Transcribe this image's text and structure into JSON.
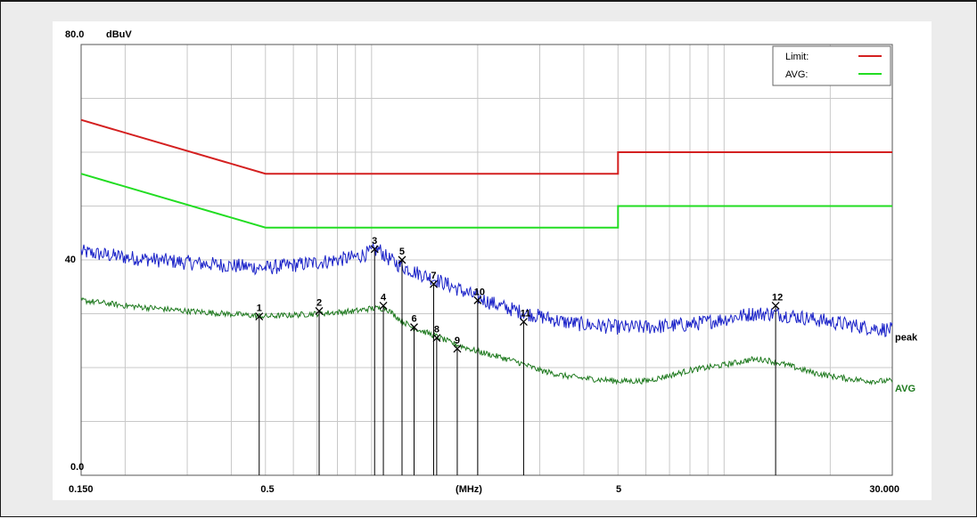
{
  "chart_data": {
    "type": "line",
    "title": "",
    "ylabel_unit": "dBuV",
    "xunit_label": "(MHz)",
    "xscale": "log",
    "xlim": [
      0.15,
      30
    ],
    "ylim": [
      0,
      80
    ],
    "grid": true,
    "y_ticks": [
      {
        "value": 80,
        "label": "80.0"
      },
      {
        "value": 40,
        "label": "40"
      },
      {
        "value": 0,
        "label": "0.0"
      }
    ],
    "x_ticks": [
      {
        "value": 0.15,
        "label": "0.150"
      },
      {
        "value": 0.5,
        "label": "0.5"
      },
      {
        "value": 5,
        "label": "5"
      },
      {
        "value": 30,
        "label": "30.000"
      }
    ],
    "legend": {
      "placement": "top-right",
      "entries": [
        {
          "label": "Limit:",
          "color": "#d42020"
        },
        {
          "label": "AVG:",
          "color": "#22dd22"
        }
      ]
    },
    "series": [
      {
        "name": "Limit:",
        "color": "#d42020",
        "x": [
          0.15,
          0.5,
          5,
          5,
          30
        ],
        "y": [
          66,
          56,
          56,
          60,
          60
        ]
      },
      {
        "name": "AVG:",
        "color": "#22dd22",
        "x": [
          0.15,
          0.5,
          5,
          5,
          30
        ],
        "y": [
          56,
          46,
          46,
          50,
          50
        ]
      },
      {
        "name": "peak",
        "color": "#1a22c8",
        "end_label": "peak",
        "x": [
          0.15,
          0.2,
          0.3,
          0.5,
          0.7,
          0.9,
          1.0,
          1.05,
          1.1,
          1.2,
          1.3,
          1.5,
          1.7,
          2.0,
          2.3,
          2.6,
          3.0,
          3.5,
          4.0,
          5.0,
          6.0,
          8.0,
          10.0,
          12.0,
          14.0,
          16.0,
          20.0,
          25.0,
          30.0
        ],
        "y": [
          41.5,
          40.5,
          39.5,
          38.5,
          39.5,
          40.5,
          41.5,
          42.0,
          40.5,
          39.0,
          38.0,
          36.5,
          35.0,
          33.0,
          31.5,
          30.5,
          29.5,
          28.5,
          28.0,
          27.5,
          27.5,
          28.0,
          29.0,
          30.0,
          30.0,
          29.5,
          28.5,
          27.5,
          27.0
        ]
      },
      {
        "name": "AVG",
        "color": "#1f7a1f",
        "end_label": "AVG",
        "x": [
          0.15,
          0.2,
          0.3,
          0.5,
          0.7,
          0.9,
          1.0,
          1.1,
          1.2,
          1.3,
          1.5,
          1.7,
          2.0,
          2.3,
          2.6,
          3.0,
          3.5,
          4.0,
          5.0,
          6.0,
          7.0,
          8.0,
          10.0,
          12.0,
          13.0,
          15.0,
          18.0,
          22.0,
          26.0,
          30.0
        ],
        "y": [
          32.5,
          31.5,
          30.5,
          29.5,
          30.0,
          30.5,
          31.0,
          31.0,
          29.0,
          27.5,
          26.0,
          24.5,
          23.0,
          22.0,
          21.0,
          19.5,
          18.5,
          18.0,
          17.5,
          17.5,
          18.5,
          19.5,
          20.5,
          21.5,
          21.5,
          20.5,
          19.0,
          18.0,
          17.5,
          17.5
        ]
      }
    ],
    "markers": [
      {
        "label": "1",
        "x": 0.48,
        "y": 29.5
      },
      {
        "label": "2",
        "x": 0.71,
        "y": 30.5
      },
      {
        "label": "3",
        "x": 1.02,
        "y": 42.0
      },
      {
        "label": "4",
        "x": 1.08,
        "y": 31.5
      },
      {
        "label": "5",
        "x": 1.22,
        "y": 40.0
      },
      {
        "label": "6",
        "x": 1.32,
        "y": 27.5
      },
      {
        "label": "7",
        "x": 1.5,
        "y": 35.5
      },
      {
        "label": "8",
        "x": 1.53,
        "y": 25.5
      },
      {
        "label": "9",
        "x": 1.75,
        "y": 23.5
      },
      {
        "label": "10",
        "x": 2.0,
        "y": 32.5
      },
      {
        "label": "11",
        "x": 2.7,
        "y": 28.5
      },
      {
        "label": "12",
        "x": 14.0,
        "y": 31.5
      }
    ]
  }
}
